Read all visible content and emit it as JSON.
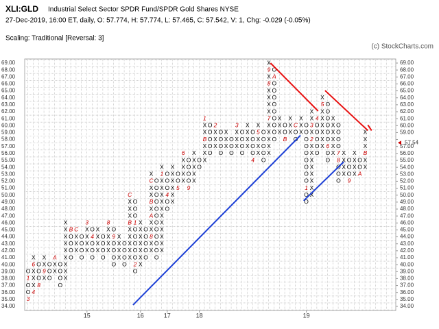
{
  "chart_data": {
    "type": "point-and-figure",
    "title": "XLI:GLD",
    "subtitle": "Industrial Select Sector SPDR Fund/SPDR Gold Shares  NYSE",
    "info": "27-Dec-2019, 16:00 ET, daily, O: 57.774, H: 57.774, L: 57.465, C: 57.542, V: 1, Chg: -0.029 (-0.05%)",
    "scaling": "Scaling: Traditional [Reversal: 3]",
    "credit": "(c) StockCharts.com",
    "box_color": "#000000",
    "month_color": "#cc0000",
    "last_price": 57.542,
    "last_label": "57.54",
    "ylim": [
      34,
      69
    ],
    "yticks": [
      {
        "value": 34,
        "label": "34.00"
      },
      {
        "value": 35,
        "label": "35.00"
      },
      {
        "value": 36,
        "label": "36.00"
      },
      {
        "value": 37,
        "label": "37.00"
      },
      {
        "value": 38,
        "label": "38.00"
      },
      {
        "value": 39,
        "label": "39.00"
      },
      {
        "value": 40,
        "label": "40.00"
      },
      {
        "value": 41,
        "label": "41.00"
      },
      {
        "value": 42,
        "label": "42.00"
      },
      {
        "value": 43,
        "label": "43.00"
      },
      {
        "value": 44,
        "label": "44.00"
      },
      {
        "value": 45,
        "label": "45.00"
      },
      {
        "value": 46,
        "label": "46.00"
      },
      {
        "value": 47,
        "label": "47.00"
      },
      {
        "value": 48,
        "label": "48.00"
      },
      {
        "value": 49,
        "label": "49.00"
      },
      {
        "value": 50,
        "label": "50.00"
      },
      {
        "value": 51,
        "label": "51.00"
      },
      {
        "value": 52,
        "label": "52.00"
      },
      {
        "value": 53,
        "label": "53.00"
      },
      {
        "value": 54,
        "label": "54.00"
      },
      {
        "value": 55,
        "label": "55.00"
      },
      {
        "value": 56,
        "label": "56.00"
      },
      {
        "value": 57,
        "label": "57.00"
      },
      {
        "value": 58,
        "label": "58.00"
      },
      {
        "value": 59,
        "label": "59.00"
      },
      {
        "value": 60,
        "label": "60.00"
      },
      {
        "value": 61,
        "label": "61.00"
      },
      {
        "value": 62,
        "label": "62.00"
      },
      {
        "value": 63,
        "label": "63.00"
      },
      {
        "value": 64,
        "label": "64.00"
      },
      {
        "value": 65,
        "label": "65.00"
      },
      {
        "value": 66,
        "label": "66.00"
      },
      {
        "value": 67,
        "label": "67.00"
      },
      {
        "value": 68,
        "label": "68.00"
      },
      {
        "value": 69,
        "label": "69.00"
      }
    ],
    "columns": [
      {
        "type": "O",
        "low": 35,
        "high": 39,
        "marks": {
          "38": "1",
          "35": "3"
        }
      },
      {
        "type": "X",
        "low": 36,
        "high": 41,
        "marks": {
          "36": "4",
          "40": "6"
        }
      },
      {
        "type": "O",
        "low": 37,
        "high": 40,
        "marks": {
          "37": "8"
        }
      },
      {
        "type": "X",
        "low": 38,
        "high": 41,
        "marks": {
          "39": "9"
        }
      },
      {
        "type": "O",
        "low": 38,
        "high": 40
      },
      {
        "type": "X",
        "low": 39,
        "high": 41,
        "marks": {
          "41": "A"
        }
      },
      {
        "type": "O",
        "low": 37,
        "high": 40
      },
      {
        "type": "X",
        "low": 38,
        "high": 46
      },
      {
        "type": "O",
        "low": 41,
        "high": 45,
        "marks": {
          "45": "B"
        }
      },
      {
        "type": "X",
        "low": 42,
        "high": 45,
        "marks": {
          "45": "C"
        }
      },
      {
        "type": "O",
        "low": 41,
        "high": 44
      },
      {
        "type": "X",
        "low": 42,
        "high": 46,
        "marks": {
          "46": "3"
        },
        "year": "15"
      },
      {
        "type": "O",
        "low": 41,
        "high": 45,
        "marks": {
          "44": "4"
        }
      },
      {
        "type": "X",
        "low": 42,
        "high": 45
      },
      {
        "type": "O",
        "low": 41,
        "high": 44
      },
      {
        "type": "X",
        "low": 42,
        "high": 46,
        "marks": {
          "46": "8"
        }
      },
      {
        "type": "O",
        "low": 40,
        "high": 45,
        "marks": {
          "44": "9"
        }
      },
      {
        "type": "X",
        "low": 41,
        "high": 44
      },
      {
        "type": "O",
        "low": 40,
        "high": 43
      },
      {
        "type": "X",
        "low": 41,
        "high": 50,
        "marks": {
          "46": "B",
          "50": "C"
        }
      },
      {
        "type": "O",
        "low": 39,
        "high": 49,
        "marks": {
          "46": "1",
          "40": "2"
        }
      },
      {
        "type": "X",
        "low": 40,
        "high": 46,
        "year": "16"
      },
      {
        "type": "O",
        "low": 41,
        "high": 45
      },
      {
        "type": "X",
        "low": 42,
        "high": 53,
        "marks": {
          "44": "8",
          "47": "A",
          "49": "B",
          "52": "C"
        }
      },
      {
        "type": "O",
        "low": 41,
        "high": 52
      },
      {
        "type": "X",
        "low": 42,
        "high": 54,
        "marks": {
          "53": "1"
        }
      },
      {
        "type": "O",
        "low": 48,
        "high": 53,
        "marks": {
          "50": "4"
        },
        "year": "17"
      },
      {
        "type": "X",
        "low": 49,
        "high": 54
      },
      {
        "type": "O",
        "low": 51,
        "high": 53,
        "marks": {
          "51": "5"
        }
      },
      {
        "type": "X",
        "low": 52,
        "high": 56,
        "marks": {
          "56": "6"
        }
      },
      {
        "type": "O",
        "low": 51,
        "high": 55,
        "marks": {
          "51": "9"
        }
      },
      {
        "type": "X",
        "low": 52,
        "high": 56
      },
      {
        "type": "O",
        "low": 54,
        "high": 55,
        "year": "18"
      },
      {
        "type": "X",
        "low": 55,
        "high": 61,
        "marks": {
          "58": "B",
          "61": "1"
        }
      },
      {
        "type": "O",
        "low": 56,
        "high": 60
      },
      {
        "type": "X",
        "low": 57,
        "high": 60,
        "marks": {
          "60": "2"
        }
      },
      {
        "type": "O",
        "low": 56,
        "high": 59
      },
      {
        "type": "X",
        "low": 57,
        "high": 59
      },
      {
        "type": "O",
        "low": 56,
        "high": 58
      },
      {
        "type": "X",
        "low": 57,
        "high": 60,
        "marks": {
          "60": "3"
        }
      },
      {
        "type": "O",
        "low": 56,
        "high": 59
      },
      {
        "type": "X",
        "low": 57,
        "high": 60
      },
      {
        "type": "O",
        "low": 55,
        "high": 59,
        "marks": {
          "55": "4"
        }
      },
      {
        "type": "X",
        "low": 56,
        "high": 60,
        "marks": {
          "59": "5"
        }
      },
      {
        "type": "O",
        "low": 55,
        "high": 59
      },
      {
        "type": "X",
        "low": 56,
        "high": 69,
        "marks": {
          "61": "7",
          "66": "8",
          "68": "9"
        }
      },
      {
        "type": "O",
        "low": 58,
        "high": 68,
        "marks": {
          "67": "A"
        }
      },
      {
        "type": "X",
        "low": 59,
        "high": 61
      },
      {
        "type": "O",
        "low": 58,
        "high": 60,
        "marks": {
          "58": "B"
        }
      },
      {
        "type": "X",
        "low": 59,
        "high": 61
      },
      {
        "type": "O",
        "low": 58,
        "high": 60,
        "marks": {
          "60": "C"
        }
      },
      {
        "type": "X",
        "low": 59,
        "high": 61
      },
      {
        "type": "O",
        "low": 49,
        "high": 60,
        "marks": {
          "51": "1"
        },
        "year": "19"
      },
      {
        "type": "X",
        "low": 50,
        "high": 62,
        "marks": {
          "58": "2",
          "60": "3"
        }
      },
      {
        "type": "O",
        "low": 56,
        "high": 61,
        "marks": {
          "61": "4"
        }
      },
      {
        "type": "X",
        "low": 57,
        "high": 64,
        "marks": {
          "63": "5"
        }
      },
      {
        "type": "O",
        "low": 55,
        "high": 63,
        "marks": {
          "57": "6"
        }
      },
      {
        "type": "X",
        "low": 56,
        "high": 61
      },
      {
        "type": "O",
        "low": 52,
        "high": 60,
        "marks": {
          "56": "7",
          "55": "8"
        }
      },
      {
        "type": "X",
        "low": 53,
        "high": 56
      },
      {
        "type": "O",
        "low": 52,
        "high": 55,
        "marks": {
          "52": "9"
        }
      },
      {
        "type": "X",
        "low": 53,
        "high": 56
      },
      {
        "type": "O",
        "low": 53,
        "high": 55,
        "marks": {
          "53": "A"
        }
      },
      {
        "type": "X",
        "low": 54,
        "high": 59,
        "marks": {
          "56": "B"
        }
      }
    ],
    "trendlines": [
      {
        "color": "#e81010",
        "x": [
          45.3,
          54.2
        ],
        "y": [
          69,
          62.1
        ]
      },
      {
        "color": "#e81010",
        "x": [
          55.5,
          63.5
        ],
        "y": [
          65.05,
          59.3
        ]
      },
      {
        "color": "#e81010",
        "x": [
          63.5,
          64.2
        ],
        "y": [
          60.1,
          59.3
        ]
      },
      {
        "color": "#1c3fd6",
        "x": [
          19.6,
          50.9
        ],
        "y": [
          34.2,
          58.6
        ]
      },
      {
        "color": "#1c3fd6",
        "x": [
          51.5,
          59
        ],
        "y": [
          49.2,
          54.8
        ]
      }
    ]
  }
}
